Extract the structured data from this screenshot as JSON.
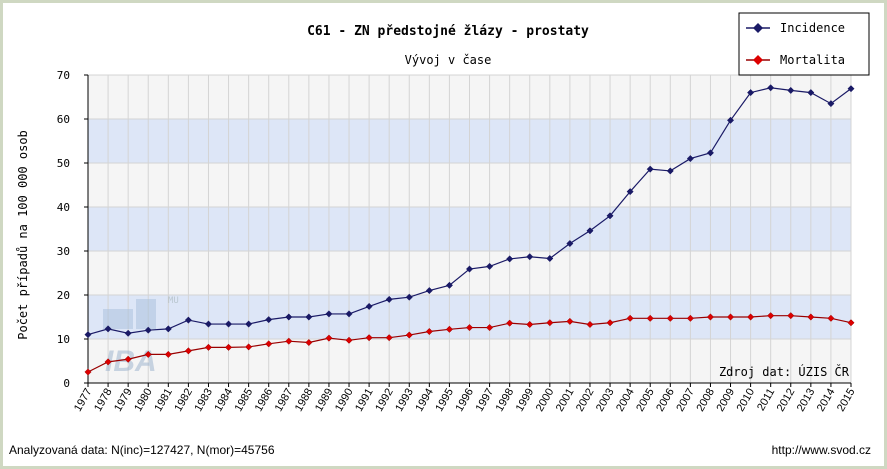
{
  "chart_data": {
    "type": "line",
    "title": "C61 - ZN předstojné žlázy - prostaty",
    "subtitle": "Vývoj v čase",
    "ylabel": "Počet případů na 100 000 osob",
    "xlabel": "",
    "ylim": [
      0,
      70
    ],
    "yticks": [
      0,
      10,
      20,
      30,
      40,
      50,
      60,
      70
    ],
    "grid": true,
    "legend_position": "top-right",
    "categories": [
      "1977",
      "1978",
      "1979",
      "1980",
      "1981",
      "1982",
      "1983",
      "1984",
      "1985",
      "1986",
      "1987",
      "1988",
      "1989",
      "1990",
      "1991",
      "1992",
      "1993",
      "1994",
      "1995",
      "1996",
      "1997",
      "1998",
      "1999",
      "2000",
      "2001",
      "2002",
      "2003",
      "2004",
      "2005",
      "2006",
      "2007",
      "2008",
      "2009",
      "2010",
      "2011",
      "2012",
      "2013",
      "2014",
      "2015"
    ],
    "series": [
      {
        "name": "Incidence",
        "color": "#1a1a66",
        "marker_color": "#1a1a66",
        "values": [
          11.0,
          12.3,
          11.3,
          12.0,
          12.3,
          14.3,
          13.4,
          13.4,
          13.4,
          14.4,
          15.0,
          15.0,
          15.7,
          15.7,
          17.4,
          19.0,
          19.5,
          21.0,
          22.2,
          25.9,
          26.5,
          28.2,
          28.7,
          28.3,
          31.7,
          34.6,
          38.0,
          43.5,
          48.6,
          48.2,
          51.0,
          52.3,
          59.7,
          66.0,
          67.1,
          66.5,
          66.0,
          63.5,
          66.9
        ]
      },
      {
        "name": "Mortalita",
        "color": "#990000",
        "marker_color": "#dd0000",
        "values": [
          2.5,
          4.8,
          5.4,
          6.5,
          6.5,
          7.3,
          8.1,
          8.1,
          8.2,
          8.9,
          9.5,
          9.2,
          10.2,
          9.7,
          10.3,
          10.3,
          10.9,
          11.7,
          12.2,
          12.6,
          12.6,
          13.6,
          13.3,
          13.7,
          14.0,
          13.3,
          13.7,
          14.7,
          14.7,
          14.7,
          14.7,
          15.0,
          15.0,
          15.0,
          15.3,
          15.3,
          15.0,
          14.7,
          13.7
        ]
      }
    ],
    "annotation": "Zdroj dat: ÚZIS ČR"
  },
  "footer": {
    "left": "Analyzovaná data: N(inc)=127427, N(mor)=45756",
    "right": "http://www.svod.cz"
  },
  "watermark": "IBA MU"
}
